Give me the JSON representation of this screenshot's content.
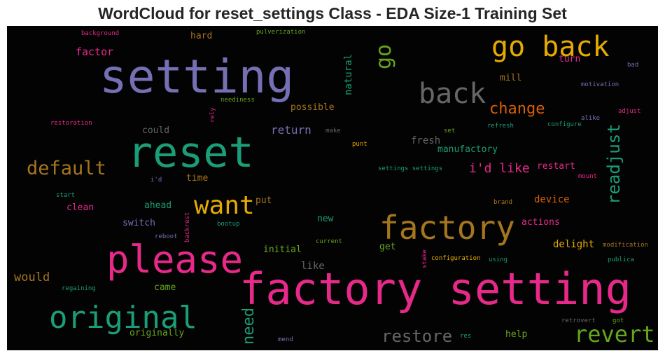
{
  "chart_data": {
    "type": "wordcloud",
    "title": "WordCloud for reset_settings Class - EDA Size-1 Training Set",
    "background": "#030303",
    "words": [
      {
        "text": "setting",
        "color": "#7570b3"
      },
      {
        "text": "reset",
        "color": "#1b9e77"
      },
      {
        "text": "factory setting",
        "color": "#e7298a"
      },
      {
        "text": "please",
        "color": "#e7298a"
      },
      {
        "text": "original",
        "color": "#1b9e77"
      },
      {
        "text": "factory",
        "color": "#a6761d"
      },
      {
        "text": "go back",
        "color": "#e6ab02"
      },
      {
        "text": "back",
        "color": "#666666"
      },
      {
        "text": "want",
        "color": "#e6ab02"
      },
      {
        "text": "default",
        "color": "#a6761d"
      },
      {
        "text": "go",
        "color": "#66a61e"
      },
      {
        "text": "revert",
        "color": "#66a61e"
      },
      {
        "text": "restore",
        "color": "#666666"
      },
      {
        "text": "readjust",
        "color": "#1b9e77"
      },
      {
        "text": "change",
        "color": "#d95f02"
      },
      {
        "text": "need",
        "color": "#1b9e77"
      },
      {
        "text": "i'd like",
        "color": "#e7298a"
      },
      {
        "text": "factor",
        "color": "#e7298a"
      },
      {
        "text": "return",
        "color": "#7570b3"
      },
      {
        "text": "would",
        "color": "#a6761d"
      },
      {
        "text": "natural",
        "color": "#1b9e77"
      },
      {
        "text": "fresh",
        "color": "#666666"
      },
      {
        "text": "manufactory",
        "color": "#1b9e77"
      },
      {
        "text": "device",
        "color": "#d95f02"
      },
      {
        "text": "actions",
        "color": "#e7298a"
      },
      {
        "text": "delight",
        "color": "#e6ab02"
      },
      {
        "text": "possible",
        "color": "#a6761d"
      },
      {
        "text": "could",
        "color": "#666666"
      },
      {
        "text": "mill",
        "color": "#a6761d"
      },
      {
        "text": "hard",
        "color": "#a6761d"
      },
      {
        "text": "turn",
        "color": "#e7298a"
      },
      {
        "text": "time",
        "color": "#a6761d"
      },
      {
        "text": "restart",
        "color": "#e7298a"
      },
      {
        "text": "ahead",
        "color": "#1b9e77"
      },
      {
        "text": "switch",
        "color": "#7570b3"
      },
      {
        "text": "clean",
        "color": "#e7298a"
      },
      {
        "text": "put",
        "color": "#a6761d"
      },
      {
        "text": "new",
        "color": "#1b9e77"
      },
      {
        "text": "initial",
        "color": "#66a61e"
      },
      {
        "text": "like",
        "color": "#666666"
      },
      {
        "text": "get",
        "color": "#66a61e"
      },
      {
        "text": "came",
        "color": "#66a61e"
      },
      {
        "text": "help",
        "color": "#66a61e"
      },
      {
        "text": "originally",
        "color": "#66a61e"
      },
      {
        "text": "background",
        "color": "#e7298a"
      },
      {
        "text": "pulverization",
        "color": "#66a61e"
      },
      {
        "text": "bad",
        "color": "#7570b3"
      },
      {
        "text": "motivation",
        "color": "#7570b3"
      },
      {
        "text": "neediness",
        "color": "#66a61e"
      },
      {
        "text": "adjust",
        "color": "#e7298a"
      },
      {
        "text": "restoration",
        "color": "#e7298a"
      },
      {
        "text": "rely",
        "color": "#e7298a"
      },
      {
        "text": "alike",
        "color": "#7570b3"
      },
      {
        "text": "make",
        "color": "#666666"
      },
      {
        "text": "refresh",
        "color": "#1b9e77"
      },
      {
        "text": "configure",
        "color": "#1b9e77"
      },
      {
        "text": "set",
        "color": "#66a61e"
      },
      {
        "text": "punt",
        "color": "#e6ab02"
      },
      {
        "text": "settings settings",
        "color": "#1b9e77"
      },
      {
        "text": "i'd",
        "color": "#7570b3"
      },
      {
        "text": "mount",
        "color": "#e7298a"
      },
      {
        "text": "start",
        "color": "#1b9e77"
      },
      {
        "text": "brand",
        "color": "#a6761d"
      },
      {
        "text": "backrest",
        "color": "#e7298a"
      },
      {
        "text": "reboot",
        "color": "#7570b3"
      },
      {
        "text": "bootup",
        "color": "#1b9e77"
      },
      {
        "text": "current",
        "color": "#66a61e"
      },
      {
        "text": "modification",
        "color": "#a6761d"
      },
      {
        "text": "stake",
        "color": "#e7298a"
      },
      {
        "text": "configuration",
        "color": "#e6ab02"
      },
      {
        "text": "using",
        "color": "#1b9e77"
      },
      {
        "text": "publica",
        "color": "#1b9e77"
      },
      {
        "text": "regaining",
        "color": "#1b9e77"
      },
      {
        "text": "retrovert",
        "color": "#666666"
      },
      {
        "text": "got",
        "color": "#66a61e"
      },
      {
        "text": "res",
        "color": "#1b9e77"
      },
      {
        "text": "mend",
        "color": "#7570b3"
      }
    ]
  }
}
